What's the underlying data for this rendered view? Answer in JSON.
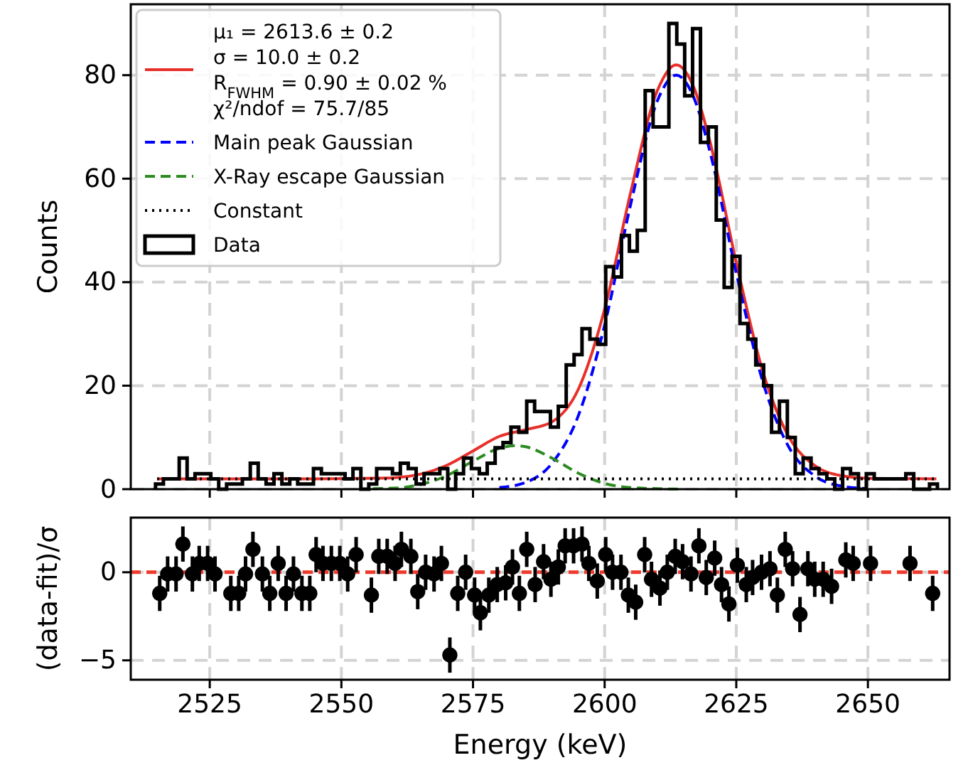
{
  "chart_data": [
    {
      "type": "histogram",
      "ylabel": "Counts",
      "xlim": [
        2510,
        2665.5
      ],
      "ylim": [
        0,
        93.7
      ],
      "xticks": [
        2525,
        2550,
        2575,
        2600,
        2625,
        2650
      ],
      "yticks": [
        0,
        20,
        40,
        60,
        80
      ],
      "grid": true,
      "legend": "top left",
      "tick_labels": "y",
      "series": [
        {
          "type": "line",
          "name": "μ₁ = 2613.6 ± 0.2\nσ = 10.0 ± 0.2\nR$_{FWHM}$ = 0.90 ± 0.02 %\nχ²/ndof = 75.7/85",
          "color": "#e8302a",
          "line_style": "solid",
          "x": [
            2515,
            2530,
            2545,
            2555,
            2560,
            2565,
            2570,
            2575,
            2580,
            2585,
            2590,
            2595,
            2600,
            2605,
            2610,
            2613.6,
            2617,
            2620,
            2625,
            2630,
            2635,
            2640,
            2645,
            2650,
            2663
          ],
          "values": [
            2,
            2,
            2,
            2.1,
            2.2,
            2.9,
            4.6,
            7.4,
            10.2,
            11.5,
            13,
            19.3,
            34.8,
            57.6,
            77,
            82,
            77.5,
            67.2,
            43.8,
            22.9,
            10.1,
            4.5,
            2.6,
            2.1,
            2
          ]
        },
        {
          "type": "line",
          "name": "Main peak Gaussian",
          "color": "#0000ff",
          "line_style": "dashed",
          "x": [
            2580,
            2585,
            2590,
            2595,
            2600,
            2605,
            2610,
            2613.6,
            2617,
            2620,
            2625,
            2630,
            2635,
            2640,
            2645,
            2650
          ],
          "values": [
            0.3,
            1.3,
            5,
            14.2,
            31.7,
            55.3,
            75,
            80,
            75.5,
            65.2,
            41.8,
            20.9,
            8.1,
            2.5,
            0.6,
            0.1
          ]
        },
        {
          "type": "line",
          "name": "X-Ray escape Gaussian",
          "color": "#2e8b22",
          "line_style": "dashed",
          "x": [
            2556,
            2560,
            2565,
            2570,
            2575,
            2580,
            2583,
            2585,
            2590,
            2595,
            2600,
            2605,
            2610,
            2615
          ],
          "values": [
            0.1,
            0.2,
            0.9,
            2.6,
            5.4,
            7.9,
            8.4,
            8.2,
            6,
            3.1,
            1.1,
            0.3,
            0.1,
            0
          ]
        },
        {
          "type": "line",
          "name": "Constant",
          "color": "#000000",
          "line_style": "dotted",
          "x": [
            2515,
            2663
          ],
          "values": [
            2,
            2
          ]
        },
        {
          "name": "Data",
          "color": "#000000",
          "bins": [
            2514.7,
            2516.2,
            2517.7,
            2519.2,
            2520.7,
            2522.2,
            2523.7,
            2525.2,
            2526.7,
            2528.2,
            2529.7,
            2531.2,
            2532.7,
            2534.2,
            2535.7,
            2537.2,
            2538.7,
            2540.2,
            2541.7,
            2543.2,
            2544.7,
            2546.2,
            2547.7,
            2549.2,
            2550.7,
            2552.2,
            2553.7,
            2555.2,
            2556.7,
            2558.2,
            2559.7,
            2561.2,
            2562.7,
            2564.2,
            2565.7,
            2567.2,
            2568.7,
            2570.2,
            2571.7,
            2573.2,
            2574.7,
            2576.2,
            2577.7,
            2579.2,
            2580.7,
            2582.2,
            2583.7,
            2585.2,
            2586.7,
            2588.2,
            2589.7,
            2591.2,
            2592.7,
            2594.2,
            2595.7,
            2597.2,
            2598.7,
            2600.2,
            2601.7,
            2603.2,
            2604.7,
            2606.2,
            2607.7,
            2609.2,
            2610.7,
            2612.2,
            2613.7,
            2615.2,
            2616.7,
            2618.2,
            2619.7,
            2621.2,
            2622.7,
            2624.2,
            2625.7,
            2627.2,
            2628.7,
            2630.2,
            2631.7,
            2633.2,
            2634.7,
            2636.2,
            2637.7,
            2639.2,
            2640.7,
            2642.2,
            2643.7,
            2645.2,
            2646.7,
            2648.2,
            2649.7,
            2651.2,
            2652.7,
            2654.2,
            2655.7,
            2657.2,
            2658.7,
            2660.2,
            2661.7,
            2663.2
          ],
          "values": [
            1,
            2,
            2,
            6,
            2,
            3,
            3,
            2,
            0,
            1,
            1,
            2,
            5,
            2,
            1,
            3,
            1,
            2,
            1,
            1,
            4,
            3,
            3,
            3,
            2,
            4,
            0,
            1,
            4,
            4,
            3,
            5,
            4,
            1,
            3,
            3,
            4,
            0,
            3,
            6,
            4,
            3,
            5,
            8,
            9,
            12,
            11,
            17,
            15,
            15,
            12,
            16,
            24,
            26,
            31,
            29,
            28,
            43,
            41,
            49,
            46,
            50,
            77,
            70,
            70,
            90,
            86,
            76,
            89,
            67,
            70,
            52,
            39,
            45,
            32,
            29,
            24,
            20,
            11,
            17,
            10,
            3,
            6,
            4,
            3,
            2,
            0,
            4,
            3,
            0,
            3,
            2,
            2,
            2,
            2,
            3,
            0,
            0,
            1
          ]
        }
      ]
    },
    {
      "type": "scatter",
      "xlabel": "Energy (keV)",
      "ylabel": "(data-fit)/σ",
      "xlim": [
        2510,
        2665.5
      ],
      "ylim": [
        -6.1,
        3.1
      ],
      "xticks": [
        2525,
        2550,
        2575,
        2600,
        2625,
        2650
      ],
      "yticks": [
        {
          "value": -5,
          "label": "−5"
        },
        0
      ],
      "grid": true,
      "marker": "circle",
      "ref_lines": [
        {
          "axis": "y",
          "value": 0,
          "color": "#ee3a2c",
          "line_style": "dashed"
        }
      ],
      "series": [
        {
          "color": "#000000",
          "x": [
            2515.5,
            2517,
            2518.6,
            2519.9,
            2521.7,
            2523,
            2524.6,
            2526,
            2529,
            2530.5,
            2531.8,
            2533.2,
            2535,
            2536.4,
            2538,
            2539.5,
            2540.9,
            2542.5,
            2544,
            2545.2,
            2546.5,
            2548.1,
            2549.7,
            2551.2,
            2552.8,
            2555.7,
            2557.1,
            2558.7,
            2560.2,
            2561.4,
            2563.2,
            2564.5,
            2566,
            2567.6,
            2569,
            2570.6,
            2572.1,
            2573.6,
            2575.3,
            2576.4,
            2578,
            2579.6,
            2581.2,
            2582.5,
            2583.8,
            2585.2,
            2586.8,
            2588.4,
            2589.8,
            2591.2,
            2592.5,
            2594.1,
            2595.7,
            2597,
            2598.6,
            2600.2,
            2601.5,
            2603.1,
            2604.5,
            2605.9,
            2607.6,
            2608.9,
            2610.5,
            2611.9,
            2613.4,
            2614.8,
            2616.4,
            2617.9,
            2619.3,
            2620.9,
            2622.2,
            2623.6,
            2625.2,
            2626.9,
            2628.1,
            2629.8,
            2631.4,
            2632.8,
            2634.3,
            2635.7,
            2637.1,
            2638.6,
            2639.9,
            2641.5,
            2643.1,
            2645.8,
            2647.2,
            2650.5,
            2658,
            2662.3
          ],
          "values": [
            -1.2,
            -0.1,
            -0.1,
            1.6,
            -0.1,
            0.5,
            0.5,
            -0.1,
            -1.2,
            -1.2,
            -0.1,
            1.3,
            -0.1,
            -1.2,
            0.5,
            -1.2,
            -0.1,
            -1.2,
            -1.2,
            1,
            0.5,
            0.5,
            0.5,
            -0.1,
            1,
            -1.3,
            0.9,
            0.9,
            0.5,
            1.3,
            0.9,
            -1.1,
            0,
            -0.1,
            0.5,
            -4.7,
            -1.2,
            0,
            -1.3,
            -2.3,
            -1.3,
            -0.7,
            -0.6,
            0.3,
            -1.2,
            1.3,
            -0.7,
            0.6,
            -0.4,
            0.3,
            1.5,
            1.5,
            1.6,
            0.5,
            -0.5,
            1,
            0,
            0,
            -1.3,
            -1.7,
            1,
            -0.4,
            -0.9,
            0,
            0.9,
            0.6,
            -0.1,
            1.5,
            -0.3,
            0.8,
            -0.7,
            -1.8,
            0.4,
            -0.7,
            -0.3,
            0,
            0.2,
            -1.3,
            1.3,
            0.2,
            -2.4,
            0.2,
            -0.4,
            -0.4,
            -0.8,
            0.7,
            0.5,
            0.5,
            0.5,
            -1.2
          ],
          "errors": [
            1,
            1,
            1,
            1,
            1,
            1,
            1,
            1,
            1,
            1,
            1,
            1,
            1,
            1,
            1,
            1,
            1,
            1,
            1,
            1,
            1,
            1,
            1,
            1,
            1,
            1,
            1,
            1,
            1,
            1,
            1,
            1,
            1,
            1,
            1,
            1,
            1,
            1,
            1,
            1,
            1,
            1,
            1,
            1,
            1,
            1,
            1,
            1,
            1,
            1,
            1,
            1,
            1,
            1,
            1,
            1,
            1,
            1,
            1,
            1,
            1,
            1,
            1,
            1,
            1,
            1,
            1,
            1,
            1,
            1,
            1,
            1,
            1,
            1,
            1,
            1,
            1,
            1,
            1,
            1,
            1,
            1,
            1,
            1,
            1,
            1,
            1,
            1,
            1,
            1
          ]
        }
      ]
    }
  ]
}
